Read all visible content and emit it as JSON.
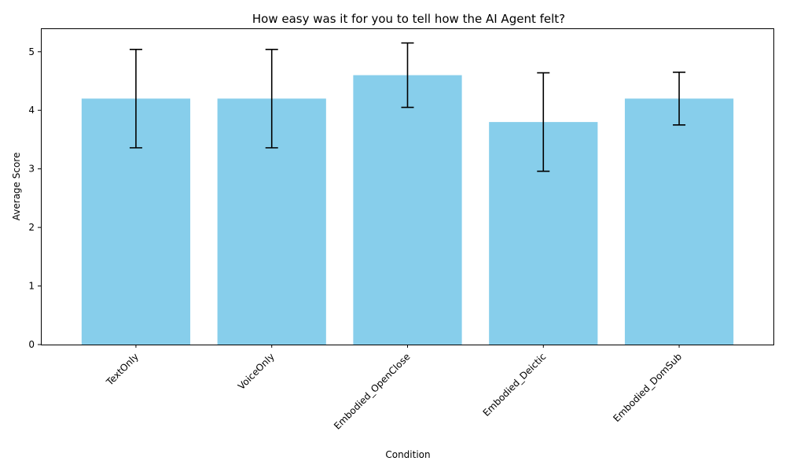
{
  "chart_data": {
    "type": "bar",
    "title": "How easy was it for you to tell how the AI Agent felt?",
    "xlabel": "Condition",
    "ylabel": "Average Score",
    "categories": [
      "TextOnly",
      "VoiceOnly",
      "Embodied_OpenClose",
      "Embodied_Deictic",
      "Embodied_DomSub"
    ],
    "values": [
      4.2,
      4.2,
      4.6,
      3.8,
      4.2
    ],
    "errors": [
      0.84,
      0.84,
      0.55,
      0.84,
      0.45
    ],
    "ylim": [
      0,
      5.4
    ],
    "yticks": [
      0,
      1,
      2,
      3,
      4,
      5
    ],
    "grid": false,
    "bar_color": "#87CEEB",
    "error_color": "#000000"
  }
}
